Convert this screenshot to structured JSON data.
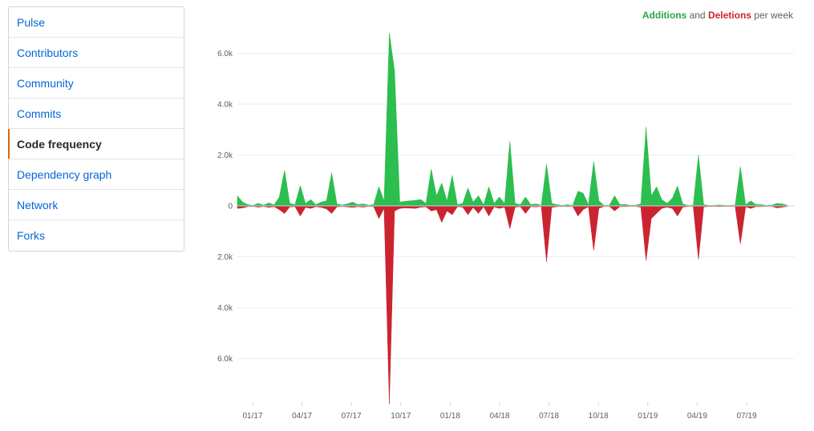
{
  "menu": {
    "items": [
      {
        "label": "Pulse",
        "selected": false
      },
      {
        "label": "Contributors",
        "selected": false
      },
      {
        "label": "Community",
        "selected": false
      },
      {
        "label": "Commits",
        "selected": false
      },
      {
        "label": "Code frequency",
        "selected": true
      },
      {
        "label": "Dependency graph",
        "selected": false
      },
      {
        "label": "Network",
        "selected": false
      },
      {
        "label": "Forks",
        "selected": false
      }
    ]
  },
  "legend": {
    "additions": "Additions",
    "and": "and",
    "deletions": "Deletions",
    "per_week": "per week"
  },
  "colors": {
    "additions": "#2cbe4e",
    "deletions": "#cb2431",
    "link": "#0366d6",
    "selected_marker": "#e36209"
  },
  "chart_data": {
    "type": "area",
    "title": "",
    "xlabel": "",
    "ylabel": "",
    "ylim": [
      -7800,
      7000
    ],
    "y_ticks": [
      {
        "value": 6000,
        "label": "6.0k"
      },
      {
        "value": 4000,
        "label": "4.0k"
      },
      {
        "value": 2000,
        "label": "2.0k"
      },
      {
        "value": 0,
        "label": "0"
      },
      {
        "value": -2000,
        "label": "2.0k"
      },
      {
        "value": -4000,
        "label": "4.0k"
      },
      {
        "value": -6000,
        "label": "6.0k"
      }
    ],
    "x_ticks": [
      "01/17",
      "04/17",
      "07/17",
      "10/17",
      "01/18",
      "04/18",
      "07/18",
      "10/18",
      "01/19",
      "04/19",
      "07/19"
    ],
    "grid": true,
    "legend_position": "top-right",
    "series": [
      {
        "name": "Additions",
        "values": [
          400,
          150,
          50,
          20,
          100,
          30,
          120,
          40,
          350,
          1400,
          100,
          50,
          800,
          100,
          250,
          50,
          150,
          200,
          1300,
          80,
          30,
          80,
          150,
          50,
          80,
          30,
          50,
          750,
          200,
          6800,
          5300,
          150,
          180,
          200,
          220,
          250,
          100,
          1450,
          400,
          900,
          200,
          1200,
          50,
          100,
          700,
          150,
          400,
          50,
          750,
          100,
          350,
          100,
          2550,
          100,
          50,
          350,
          50,
          80,
          20,
          1650,
          100,
          50,
          20,
          50,
          20,
          580,
          500,
          50,
          1750,
          200,
          20,
          30,
          400,
          50,
          60,
          20,
          30,
          80,
          3100,
          400,
          750,
          250,
          100,
          300,
          780,
          80,
          20,
          30,
          2000,
          50,
          20,
          20,
          40,
          20,
          20,
          30,
          1550,
          50,
          200,
          50,
          50,
          20,
          30,
          100,
          80,
          20
        ]
      },
      {
        "name": "Deletions",
        "values": [
          -100,
          -80,
          -30,
          -20,
          -50,
          -20,
          -60,
          -30,
          -150,
          -300,
          -40,
          -30,
          -400,
          -60,
          -100,
          -30,
          -60,
          -120,
          -300,
          -40,
          -20,
          -40,
          -60,
          -30,
          -50,
          -20,
          -30,
          -500,
          -100,
          -7800,
          -200,
          -100,
          -80,
          -90,
          -100,
          -50,
          -40,
          -200,
          -150,
          -650,
          -200,
          -350,
          -30,
          -50,
          -350,
          -60,
          -300,
          -30,
          -400,
          -40,
          -100,
          -50,
          -900,
          -50,
          -30,
          -300,
          -30,
          -40,
          -20,
          -2200,
          -60,
          -30,
          -20,
          -30,
          -20,
          -400,
          -150,
          -30,
          -1750,
          -100,
          -20,
          -20,
          -200,
          -30,
          -30,
          -20,
          -20,
          -50,
          -2150,
          -500,
          -300,
          -100,
          -50,
          -100,
          -400,
          -50,
          -20,
          -20,
          -2100,
          -40,
          -20,
          -20,
          -30,
          -20,
          -20,
          -20,
          -1500,
          -40,
          -100,
          -30,
          -30,
          -20,
          -20,
          -80,
          -50,
          -20
        ]
      }
    ]
  }
}
